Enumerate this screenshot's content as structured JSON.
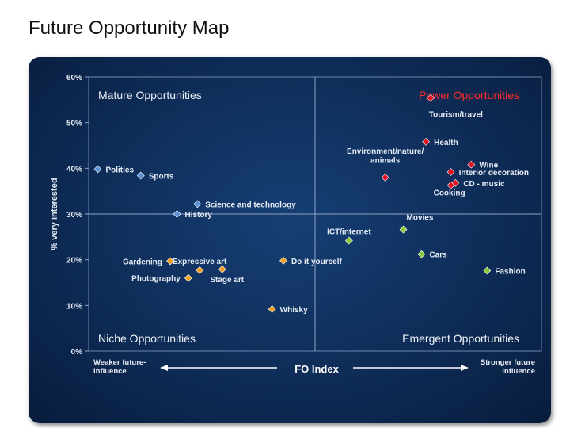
{
  "title": "Future Opportunity Map",
  "chart_data": {
    "type": "scatter",
    "title": "Future Opportunity Map",
    "ylabel": "% very interested",
    "xlabel": "FO Index",
    "x_left_label": "Weaker future-\ninfluence",
    "x_right_label": "Stronger future\ninfluence",
    "ylim": [
      0,
      60
    ],
    "xlim": [
      0,
      100
    ],
    "y_ticks": [
      "0%",
      "10%",
      "20%",
      "30%",
      "40%",
      "50%",
      "60%"
    ],
    "y_tick_values": [
      0,
      10,
      20,
      30,
      40,
      50,
      60
    ],
    "quadrant_divider_x": 50,
    "quadrant_divider_y": 30,
    "quadrants": {
      "top_left": "Mature Opportunities",
      "top_right": "Power Opportunities",
      "bottom_left": "Niche Opportunities",
      "bottom_right": "Emergent Opportunities"
    },
    "colors": {
      "blue": "#5b8fd6",
      "red": "#e01020",
      "green": "#8cc83c",
      "orange": "#f0a020"
    },
    "points": [
      {
        "label": "Tourism/travel",
        "x": 75.5,
        "y": 55.4,
        "color": "red",
        "label_pos": "below"
      },
      {
        "label": "Health",
        "x": 74.5,
        "y": 45.8,
        "color": "red",
        "label_pos": "right"
      },
      {
        "label": "Environment/nature/\nanimals",
        "x": 65.5,
        "y": 38.0,
        "color": "red",
        "label_pos": "above"
      },
      {
        "label": "Wine",
        "x": 84.5,
        "y": 40.8,
        "color": "red",
        "label_pos": "right"
      },
      {
        "label": "Interior decoration",
        "x": 80.0,
        "y": 39.2,
        "color": "red",
        "label_pos": "right"
      },
      {
        "label": "CD - music",
        "x": 81.0,
        "y": 36.8,
        "color": "red",
        "label_pos": "right"
      },
      {
        "label": "Cooking",
        "x": 80.0,
        "y": 36.3,
        "color": "red",
        "label_pos": "below"
      },
      {
        "label": "Politics",
        "x": 2.0,
        "y": 39.8,
        "color": "blue",
        "label_pos": "right"
      },
      {
        "label": "Sports",
        "x": 11.5,
        "y": 38.4,
        "color": "blue",
        "label_pos": "right"
      },
      {
        "label": "Science and technology",
        "x": 24.0,
        "y": 32.2,
        "color": "blue",
        "label_pos": "right"
      },
      {
        "label": "History",
        "x": 19.5,
        "y": 30.0,
        "color": "blue",
        "label_pos": "right"
      },
      {
        "label": "ICT/internet",
        "x": 57.5,
        "y": 24.2,
        "color": "green",
        "label_pos": "above"
      },
      {
        "label": "Movies",
        "x": 69.5,
        "y": 26.6,
        "color": "green",
        "label_pos": "above-right"
      },
      {
        "label": "Cars",
        "x": 73.5,
        "y": 21.2,
        "color": "green",
        "label_pos": "right"
      },
      {
        "label": "Fashion",
        "x": 88.0,
        "y": 17.6,
        "color": "green",
        "label_pos": "right"
      },
      {
        "label": "Gardening",
        "x": 18.0,
        "y": 19.7,
        "color": "orange",
        "label_pos": "left"
      },
      {
        "label": "Expressive art",
        "x": 24.5,
        "y": 17.7,
        "color": "orange",
        "label_pos": "above"
      },
      {
        "label": "Photography",
        "x": 22.0,
        "y": 16.0,
        "color": "orange",
        "label_pos": "left"
      },
      {
        "label": "Stage art",
        "x": 29.5,
        "y": 17.9,
        "color": "orange",
        "label_pos": "below"
      },
      {
        "label": "Do it yourself",
        "x": 43.0,
        "y": 19.8,
        "color": "orange",
        "label_pos": "right"
      },
      {
        "label": "Whisky",
        "x": 40.5,
        "y": 9.2,
        "color": "orange",
        "label_pos": "right"
      }
    ]
  }
}
